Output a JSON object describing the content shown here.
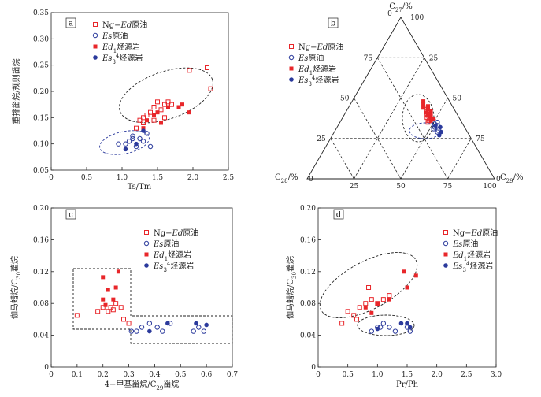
{
  "colors": {
    "red": "#e8262a",
    "blue": "#2b3a9c",
    "axis": "#222222"
  },
  "legend_a": [
    "Ng−Ed原油",
    "Es原油",
    "Ed1烃源岩",
    "Es3⁴烃源岩"
  ],
  "chart_data": [
    {
      "panel": "a",
      "type": "scatter",
      "xlabel": "Ts/Tm",
      "ylabel": "重排甾烷/规则甾烷",
      "xlim": [
        0,
        2.5
      ],
      "ylim": [
        0.05,
        0.35
      ],
      "xticks": [
        "0",
        "0.5",
        "1.0",
        "1.5",
        "2.0",
        "2.5"
      ],
      "yticks": [
        "0.05",
        "0.10",
        "0.15",
        "0.20",
        "0.25",
        "0.30",
        "0.35"
      ],
      "series": [
        {
          "name": "Ng−Ed原油",
          "points": [
            [
              1.2,
              0.13
            ],
            [
              1.25,
              0.145
            ],
            [
              1.3,
              0.15
            ],
            [
              1.3,
              0.14
            ],
            [
              1.35,
              0.155
            ],
            [
              1.4,
              0.16
            ],
            [
              1.45,
              0.17
            ],
            [
              1.5,
              0.18
            ],
            [
              1.55,
              0.165
            ],
            [
              1.6,
              0.175
            ],
            [
              1.65,
              0.18
            ],
            [
              1.7,
              0.175
            ],
            [
              1.45,
              0.145
            ],
            [
              1.6,
              0.15
            ],
            [
              1.95,
              0.24
            ],
            [
              2.2,
              0.245
            ],
            [
              2.25,
              0.205
            ]
          ]
        },
        {
          "name": "Es原油",
          "points": [
            [
              0.95,
              0.1
            ],
            [
              1.05,
              0.1
            ],
            [
              1.1,
              0.105
            ],
            [
              1.15,
              0.115
            ],
            [
              1.2,
              0.095
            ],
            [
              1.25,
              0.11
            ],
            [
              1.3,
              0.105
            ],
            [
              1.35,
              0.12
            ],
            [
              1.4,
              0.095
            ],
            [
              1.15,
              0.11
            ]
          ]
        },
        {
          "name": "Ed1烃源岩",
          "points": [
            [
              1.3,
              0.13
            ],
            [
              1.45,
              0.155
            ],
            [
              1.55,
              0.14
            ],
            [
              1.65,
              0.17
            ],
            [
              1.8,
              0.17
            ],
            [
              1.85,
              0.175
            ],
            [
              1.95,
              0.16
            ],
            [
              1.35,
              0.145
            ],
            [
              1.5,
              0.16
            ]
          ]
        },
        {
          "name": "Es3⁴烃源岩",
          "points": [
            [
              1.05,
              0.09
            ],
            [
              1.2,
              0.1
            ],
            [
              1.3,
              0.125
            ]
          ]
        }
      ]
    },
    {
      "panel": "b",
      "type": "scatter",
      "top_label": "C27/%",
      "left_label": "C28/%",
      "right_label": "C29/%",
      "ticks": [
        "25",
        "50",
        "75",
        "100"
      ],
      "series": [
        {
          "name": "Ng−Ed原油",
          "points": [
            [
              42,
              15,
              43
            ],
            [
              40,
              16,
              44
            ],
            [
              38,
              17,
              45
            ],
            [
              36,
              17,
              47
            ],
            [
              39,
              15,
              46
            ],
            [
              41,
              14,
              45
            ],
            [
              37,
              16,
              47
            ],
            [
              35,
              18,
              47
            ],
            [
              44,
              14,
              42
            ],
            [
              43,
              15,
              42
            ]
          ]
        },
        {
          "name": "Es原油",
          "points": [
            [
              34,
              15,
              51
            ],
            [
              32,
              16,
              52
            ],
            [
              30,
              15,
              55
            ],
            [
              33,
              14,
              53
            ],
            [
              31,
              17,
              52
            ],
            [
              35,
              13,
              52
            ],
            [
              29,
              16,
              55
            ]
          ]
        },
        {
          "name": "Ed1烃源岩",
          "points": [
            [
              48,
              14,
              38
            ],
            [
              46,
              15,
              39
            ],
            [
              45,
              13,
              42
            ],
            [
              44,
              16,
              40
            ],
            [
              43,
              14,
              43
            ],
            [
              42,
              13,
              45
            ],
            [
              41,
              16,
              43
            ],
            [
              40,
              14,
              46
            ],
            [
              39,
              16,
              45
            ],
            [
              38,
              15,
              47
            ],
            [
              37,
              14,
              49
            ],
            [
              36,
              16,
              48
            ]
          ]
        },
        {
          "name": "Es3⁴烃源岩",
          "points": [
            [
              33,
              15,
              52
            ],
            [
              29,
              14,
              57
            ],
            [
              27,
              16,
              57
            ],
            [
              32,
              13,
              55
            ]
          ]
        }
      ]
    },
    {
      "panel": "c",
      "type": "scatter",
      "xlabel": "4−甲基甾烷/C29甾烷",
      "ylabel": "伽马蜡烷/C30藿烷",
      "xlim": [
        0,
        0.7
      ],
      "ylim": [
        0,
        0.2
      ],
      "xticks": [
        "0",
        "0.1",
        "0.2",
        "0.3",
        "0.4",
        "0.5",
        "0.6",
        "0.7"
      ],
      "yticks": [
        "0",
        "0.04",
        "0.08",
        "0.12",
        "0.16",
        "0.20"
      ],
      "series": [
        {
          "name": "Ng−Ed原油",
          "points": [
            [
              0.1,
              0.065
            ],
            [
              0.18,
              0.07
            ],
            [
              0.2,
              0.075
            ],
            [
              0.22,
              0.07
            ],
            [
              0.23,
              0.075
            ],
            [
              0.25,
              0.08
            ],
            [
              0.27,
              0.075
            ],
            [
              0.28,
              0.06
            ],
            [
              0.3,
              0.055
            ],
            [
              0.24,
              0.072
            ]
          ]
        },
        {
          "name": "Es原油",
          "points": [
            [
              0.33,
              0.045
            ],
            [
              0.35,
              0.05
            ],
            [
              0.38,
              0.055
            ],
            [
              0.41,
              0.05
            ],
            [
              0.46,
              0.055
            ],
            [
              0.55,
              0.045
            ],
            [
              0.57,
              0.05
            ],
            [
              0.59,
              0.045
            ],
            [
              0.31,
              0.045
            ],
            [
              0.43,
              0.045
            ]
          ]
        },
        {
          "name": "Ed1烃源岩",
          "points": [
            [
              0.2,
              0.085
            ],
            [
              0.2,
              0.113
            ],
            [
              0.22,
              0.097
            ],
            [
              0.25,
              0.1
            ],
            [
              0.26,
              0.12
            ],
            [
              0.24,
              0.085
            ],
            [
              0.21,
              0.078
            ]
          ]
        },
        {
          "name": "Es3⁴烃源岩",
          "points": [
            [
              0.38,
              0.045
            ],
            [
              0.45,
              0.055
            ],
            [
              0.56,
              0.055
            ],
            [
              0.6,
              0.053
            ]
          ]
        }
      ]
    },
    {
      "panel": "d",
      "type": "scatter",
      "xlabel": "Pr/Ph",
      "ylabel": "伽马蜡烷/C30藿烷",
      "xlim": [
        0,
        3.0
      ],
      "ylim": [
        0,
        0.2
      ],
      "xticks": [
        "0",
        "0.5",
        "1.0",
        "1.5",
        "2.0",
        "2.5",
        "3.0"
      ],
      "yticks": [
        "0",
        "0.04",
        "0.08",
        "0.12",
        "0.16",
        "0.20"
      ],
      "series": [
        {
          "name": "Ng−Ed原油",
          "points": [
            [
              0.4,
              0.055
            ],
            [
              0.5,
              0.07
            ],
            [
              0.6,
              0.065
            ],
            [
              0.7,
              0.075
            ],
            [
              0.8,
              0.08
            ],
            [
              0.9,
              0.085
            ],
            [
              1.0,
              0.08
            ],
            [
              1.1,
              0.085
            ],
            [
              1.2,
              0.09
            ],
            [
              0.85,
              0.1
            ],
            [
              0.65,
              0.06
            ]
          ]
        },
        {
          "name": "Es原油",
          "points": [
            [
              0.9,
              0.045
            ],
            [
              1.0,
              0.05
            ],
            [
              1.05,
              0.05
            ],
            [
              1.1,
              0.055
            ],
            [
              1.2,
              0.05
            ],
            [
              1.3,
              0.045
            ],
            [
              1.5,
              0.05
            ],
            [
              1.55,
              0.045
            ]
          ]
        },
        {
          "name": "Ed1烃源岩",
          "points": [
            [
              0.8,
              0.075
            ],
            [
              0.9,
              0.068
            ],
            [
              1.2,
              0.085
            ],
            [
              1.5,
              0.1
            ],
            [
              1.45,
              0.12
            ],
            [
              1.65,
              0.115
            ],
            [
              1.0,
              0.08
            ]
          ]
        },
        {
          "name": "Es3⁴烃源岩",
          "points": [
            [
              1.0,
              0.048
            ],
            [
              1.4,
              0.055
            ],
            [
              1.5,
              0.055
            ],
            [
              1.55,
              0.05
            ]
          ]
        }
      ]
    }
  ]
}
